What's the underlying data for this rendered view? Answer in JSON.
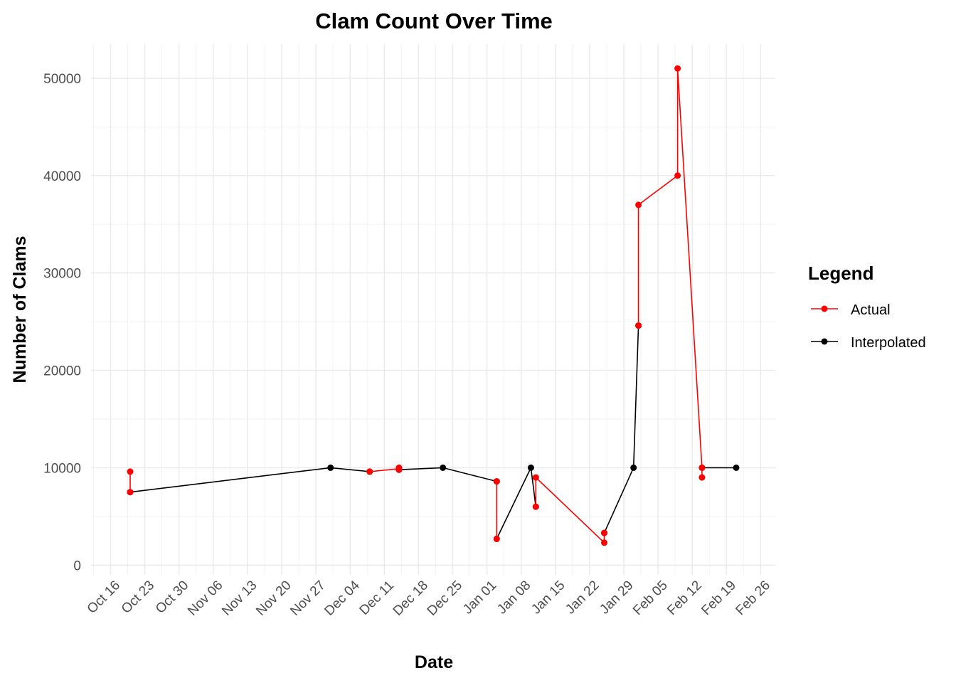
{
  "chart_data": {
    "type": "line",
    "title": "Clam Count Over Time",
    "xlabel": "Date",
    "ylabel": "Number of Clams",
    "x_ticks": [
      "Oct 16",
      "Oct 23",
      "Oct 30",
      "Nov 06",
      "Nov 13",
      "Nov 20",
      "Nov 27",
      "Dec 04",
      "Dec 11",
      "Dec 18",
      "Dec 25",
      "Jan 01",
      "Jan 08",
      "Jan 15",
      "Jan 22",
      "Jan 29",
      "Feb 05",
      "Feb 12",
      "Feb 19",
      "Feb 26"
    ],
    "y_ticks": [
      0,
      10000,
      20000,
      30000,
      40000,
      50000
    ],
    "xlim": [
      "2023-10-12",
      "2024-02-29"
    ],
    "ylim": [
      -1000,
      53500
    ],
    "grid": true,
    "legend": {
      "title": "Legend",
      "position": "right"
    },
    "series": [
      {
        "name": "Actual",
        "color": "#ff0000",
        "segments": [
          [
            [
              "2023-10-20",
              9600
            ],
            [
              "2023-10-20",
              7500
            ]
          ],
          [
            [
              "2023-12-08",
              9600
            ],
            [
              "2023-12-14",
              9900
            ],
            [
              "2023-12-14",
              10000
            ],
            [
              "2023-12-14",
              9800
            ]
          ],
          [
            [
              "2024-01-03",
              8600
            ],
            [
              "2024-01-03",
              2700
            ]
          ],
          [
            [
              "2024-01-11",
              6000
            ],
            [
              "2024-01-11",
              9000
            ],
            [
              "2024-01-25",
              2300
            ],
            [
              "2024-01-25",
              3300
            ]
          ],
          [
            [
              "2024-02-01",
              24600
            ],
            [
              "2024-02-01",
              37000
            ],
            [
              "2024-02-09",
              40000
            ],
            [
              "2024-02-09",
              51000
            ],
            [
              "2024-02-14",
              10000
            ],
            [
              "2024-02-14",
              9000
            ]
          ]
        ]
      },
      {
        "name": "Interpolated",
        "color": "#000000",
        "segments": [
          [
            [
              "2023-10-20",
              7500
            ],
            [
              "2023-11-30",
              10000
            ],
            [
              "2023-12-08",
              9600
            ]
          ],
          [
            [
              "2023-12-14",
              9800
            ],
            [
              "2023-12-23",
              10000
            ],
            [
              "2024-01-03",
              8600
            ]
          ],
          [
            [
              "2024-01-03",
              2700
            ],
            [
              "2024-01-10",
              10000
            ],
            [
              "2024-01-11",
              6000
            ]
          ],
          [
            [
              "2024-01-25",
              3300
            ],
            [
              "2024-01-31",
              10000
            ],
            [
              "2024-02-01",
              24600
            ]
          ],
          [
            [
              "2024-02-14",
              10000
            ],
            [
              "2024-02-21",
              10000
            ]
          ]
        ]
      }
    ]
  }
}
